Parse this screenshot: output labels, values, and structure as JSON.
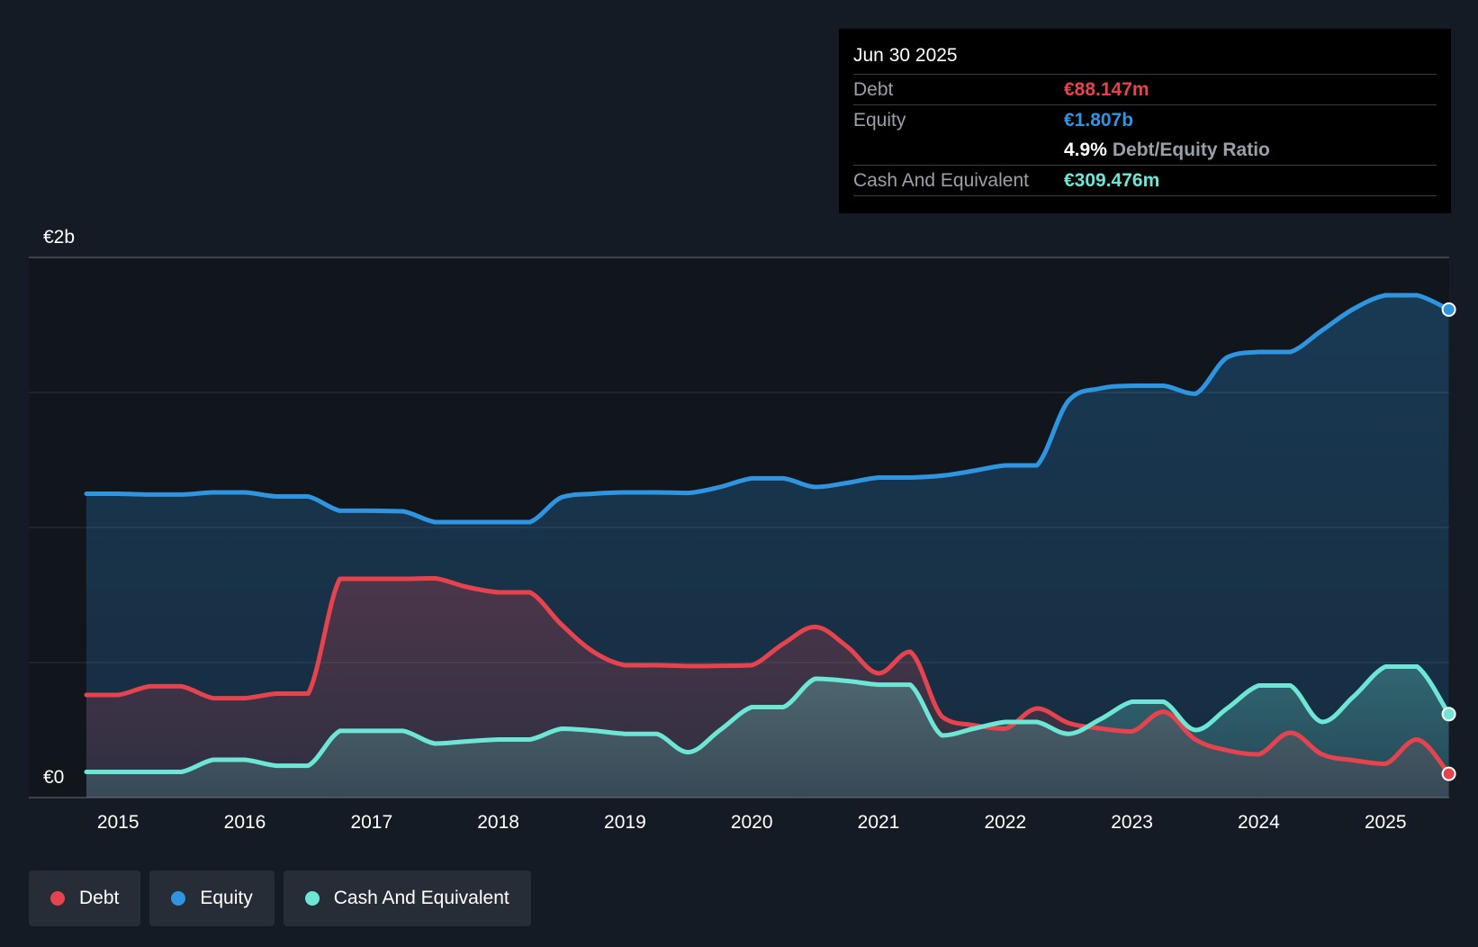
{
  "colors": {
    "debt": "#e6434f",
    "equity": "#2f95e0",
    "cash": "#6ee6d6",
    "background": "#151b24"
  },
  "tooltip": {
    "date": "Jun 30 2025",
    "debt_label": "Debt",
    "debt_value": "€88.147m",
    "equity_label": "Equity",
    "equity_value": "€1.807b",
    "ratio_value": "4.9%",
    "ratio_label": "Debt/Equity Ratio",
    "cash_label": "Cash And Equivalent",
    "cash_value": "€309.476m"
  },
  "legend": {
    "debt": "Debt",
    "equity": "Equity",
    "cash": "Cash And Equivalent"
  },
  "chart_data": {
    "type": "area",
    "y_top_label": "€2b",
    "y_bottom_label": "€0",
    "ylim": [
      0,
      2000
    ],
    "xlim": [
      2014.75,
      2025.5
    ],
    "x_ticks": [
      "2015",
      "2016",
      "2017",
      "2018",
      "2019",
      "2020",
      "2021",
      "2022",
      "2023",
      "2024",
      "2025"
    ],
    "grid": true,
    "legend_position": "bottom-left",
    "series": [
      {
        "name": "Equity",
        "color": "#2f95e0",
        "points": [
          [
            2014.75,
            1125
          ],
          [
            2015.0,
            1125
          ],
          [
            2015.25,
            1122
          ],
          [
            2015.5,
            1122
          ],
          [
            2015.75,
            1130
          ],
          [
            2016.0,
            1130
          ],
          [
            2016.25,
            1115
          ],
          [
            2016.5,
            1115
          ],
          [
            2016.75,
            1062
          ],
          [
            2017.0,
            1062
          ],
          [
            2017.25,
            1060
          ],
          [
            2017.5,
            1020
          ],
          [
            2017.75,
            1020
          ],
          [
            2018.0,
            1020
          ],
          [
            2018.25,
            1020
          ],
          [
            2018.5,
            1112
          ],
          [
            2018.75,
            1125
          ],
          [
            2019.0,
            1130
          ],
          [
            2019.25,
            1130
          ],
          [
            2019.5,
            1128
          ],
          [
            2019.75,
            1150
          ],
          [
            2020.0,
            1182
          ],
          [
            2020.25,
            1182
          ],
          [
            2020.5,
            1150
          ],
          [
            2020.75,
            1165
          ],
          [
            2021.0,
            1185
          ],
          [
            2021.25,
            1185
          ],
          [
            2021.5,
            1192
          ],
          [
            2021.75,
            1210
          ],
          [
            2022.0,
            1230
          ],
          [
            2022.25,
            1230
          ],
          [
            2022.5,
            1470
          ],
          [
            2022.75,
            1515
          ],
          [
            2023.0,
            1525
          ],
          [
            2023.25,
            1525
          ],
          [
            2023.5,
            1495
          ],
          [
            2023.75,
            1630
          ],
          [
            2024.0,
            1650
          ],
          [
            2024.25,
            1650
          ],
          [
            2024.5,
            1730
          ],
          [
            2024.75,
            1810
          ],
          [
            2025.0,
            1860
          ],
          [
            2025.25,
            1860
          ],
          [
            2025.5,
            1807
          ]
        ]
      },
      {
        "name": "Debt",
        "color": "#e6434f",
        "points": [
          [
            2014.75,
            380
          ],
          [
            2015.0,
            380
          ],
          [
            2015.25,
            412
          ],
          [
            2015.5,
            412
          ],
          [
            2015.75,
            368
          ],
          [
            2016.0,
            368
          ],
          [
            2016.25,
            385
          ],
          [
            2016.5,
            385
          ],
          [
            2016.75,
            810
          ],
          [
            2017.0,
            810
          ],
          [
            2017.25,
            810
          ],
          [
            2017.5,
            812
          ],
          [
            2017.75,
            780
          ],
          [
            2018.0,
            760
          ],
          [
            2018.25,
            760
          ],
          [
            2018.5,
            640
          ],
          [
            2018.75,
            540
          ],
          [
            2019.0,
            490
          ],
          [
            2019.25,
            490
          ],
          [
            2019.5,
            487
          ],
          [
            2019.75,
            488
          ],
          [
            2020.0,
            490
          ],
          [
            2020.25,
            570
          ],
          [
            2020.5,
            632
          ],
          [
            2020.75,
            560
          ],
          [
            2021.0,
            460
          ],
          [
            2021.25,
            540
          ],
          [
            2021.5,
            300
          ],
          [
            2021.75,
            268
          ],
          [
            2022.0,
            255
          ],
          [
            2022.25,
            330
          ],
          [
            2022.5,
            276
          ],
          [
            2022.75,
            256
          ],
          [
            2023.0,
            245
          ],
          [
            2023.25,
            318
          ],
          [
            2023.5,
            215
          ],
          [
            2023.75,
            175
          ],
          [
            2024.0,
            160
          ],
          [
            2024.25,
            240
          ],
          [
            2024.5,
            160
          ],
          [
            2024.75,
            138
          ],
          [
            2025.0,
            125
          ],
          [
            2025.25,
            215
          ],
          [
            2025.5,
            88
          ]
        ]
      },
      {
        "name": "Cash And Equivalent",
        "color": "#6ee6d6",
        "points": [
          [
            2014.75,
            95
          ],
          [
            2015.0,
            95
          ],
          [
            2015.25,
            95
          ],
          [
            2015.5,
            95
          ],
          [
            2015.75,
            140
          ],
          [
            2016.0,
            140
          ],
          [
            2016.25,
            118
          ],
          [
            2016.5,
            118
          ],
          [
            2016.75,
            247
          ],
          [
            2017.0,
            247
          ],
          [
            2017.25,
            247
          ],
          [
            2017.5,
            200
          ],
          [
            2017.75,
            208
          ],
          [
            2018.0,
            215
          ],
          [
            2018.25,
            215
          ],
          [
            2018.5,
            255
          ],
          [
            2018.75,
            248
          ],
          [
            2019.0,
            236
          ],
          [
            2019.25,
            236
          ],
          [
            2019.5,
            168
          ],
          [
            2019.75,
            250
          ],
          [
            2020.0,
            335
          ],
          [
            2020.25,
            335
          ],
          [
            2020.5,
            440
          ],
          [
            2020.75,
            432
          ],
          [
            2021.0,
            418
          ],
          [
            2021.25,
            418
          ],
          [
            2021.5,
            230
          ],
          [
            2021.75,
            255
          ],
          [
            2022.0,
            280
          ],
          [
            2022.25,
            280
          ],
          [
            2022.5,
            236
          ],
          [
            2022.75,
            290
          ],
          [
            2023.0,
            355
          ],
          [
            2023.25,
            355
          ],
          [
            2023.5,
            250
          ],
          [
            2023.75,
            330
          ],
          [
            2024.0,
            415
          ],
          [
            2024.25,
            415
          ],
          [
            2024.5,
            280
          ],
          [
            2024.75,
            375
          ],
          [
            2025.0,
            485
          ],
          [
            2025.25,
            485
          ],
          [
            2025.5,
            309
          ]
        ]
      }
    ]
  }
}
